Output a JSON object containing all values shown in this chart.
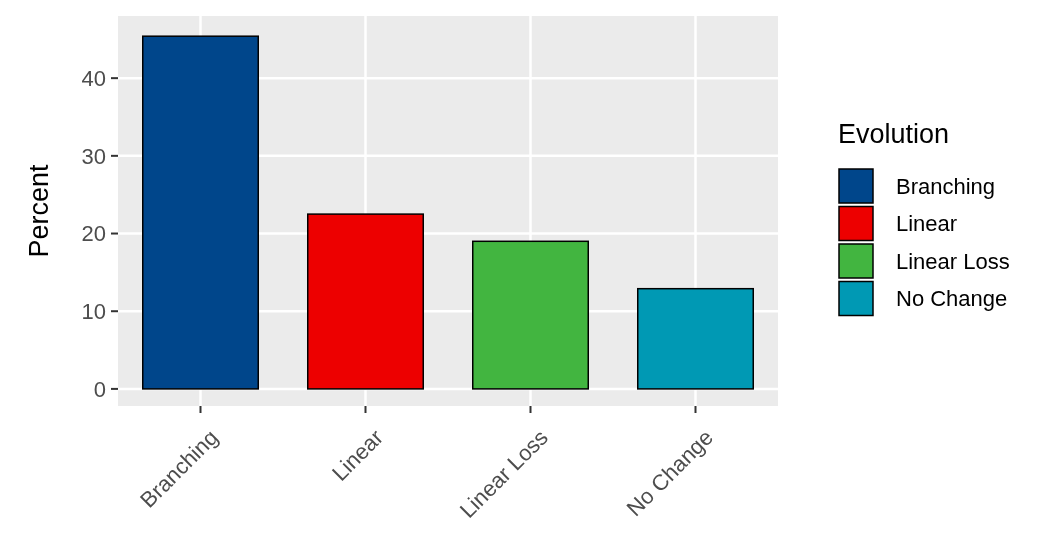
{
  "chart_data": {
    "type": "bar",
    "ylabel": "Percent",
    "legend_title": "Evolution",
    "legend": "right",
    "stacked": true,
    "categories": [
      "Branching",
      "Linear",
      "Linear Loss",
      "No Change"
    ],
    "series": [
      {
        "name": "Branching",
        "color": "#00468b",
        "values": [
          45.4,
          null,
          null,
          null
        ]
      },
      {
        "name": "Linear",
        "color": "#ed0000",
        "values": [
          null,
          22.5,
          null,
          null
        ]
      },
      {
        "name": "Linear Loss",
        "color": "#42b540",
        "values": [
          null,
          null,
          19.0,
          null
        ]
      },
      {
        "name": "No Change",
        "color": "#0099b4",
        "values": [
          null,
          null,
          null,
          12.9
        ]
      }
    ],
    "ylim": [
      -2.2,
      48
    ],
    "yticks": [
      0,
      10,
      20,
      30,
      40
    ],
    "grid": true
  }
}
